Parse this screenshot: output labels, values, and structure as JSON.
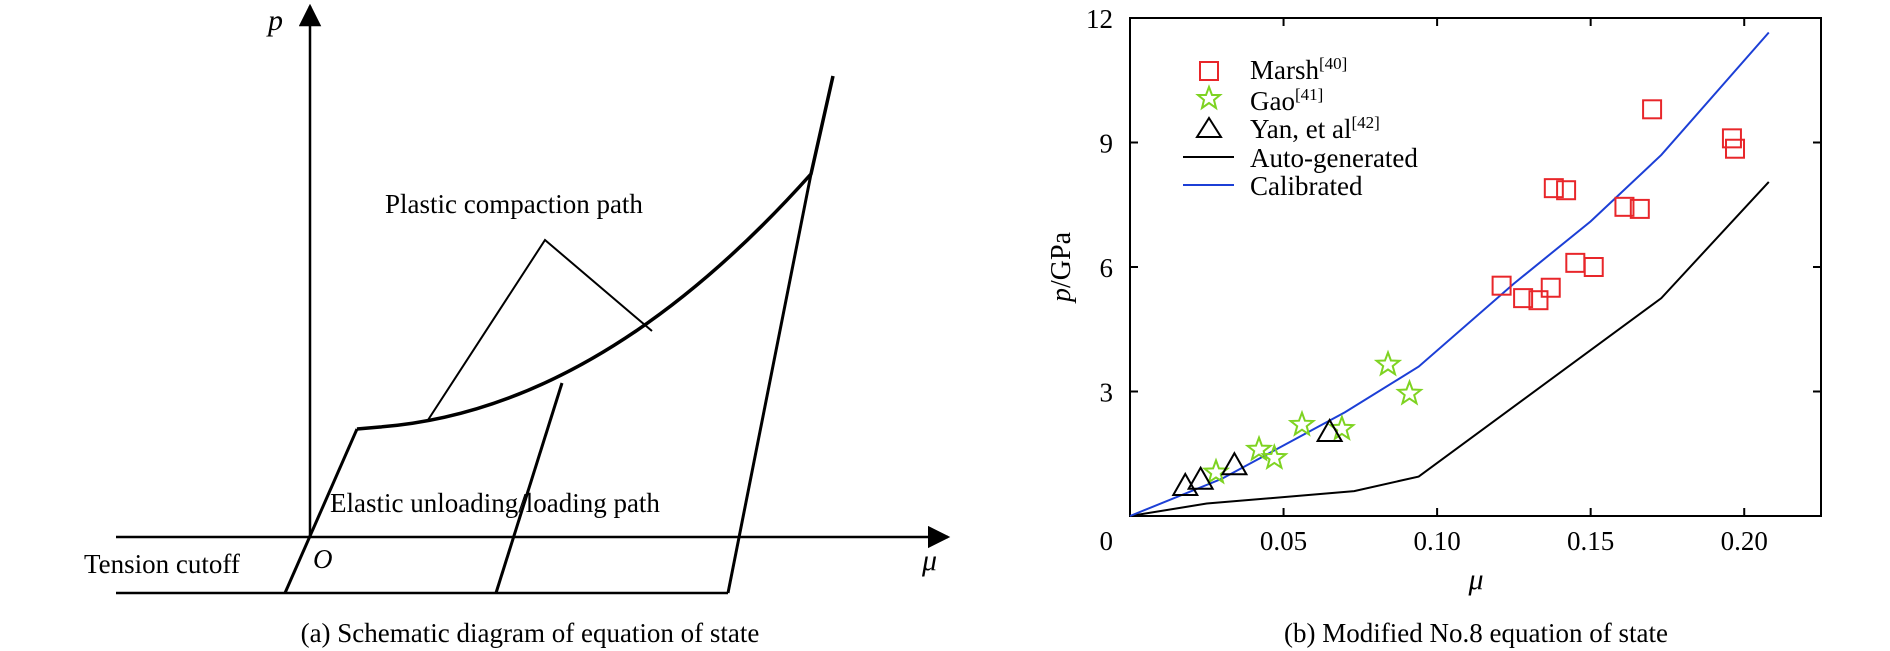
{
  "panel_a": {
    "ylabel": "p",
    "xlabel": "μ",
    "origin_label": "O",
    "annotations": {
      "plastic_path": "Plastic compaction path",
      "elastic_path": "Elastic unloading/loading path",
      "tension_cutoff": "Tension cutoff"
    },
    "caption": "(a) Schematic diagram of equation of state"
  },
  "panel_b": {
    "caption": "(b) Modified No.8 equation of state"
  },
  "chart_data": {
    "type": "scatter",
    "xlabel": "μ",
    "ylabel_italic": "p",
    "ylabel_unit": "/GPa",
    "xlim": [
      0,
      0.225
    ],
    "ylim": [
      0,
      12
    ],
    "xticks": [
      0,
      0.05,
      0.1,
      0.15,
      0.2
    ],
    "xtick_labels": [
      "0.05",
      "0.10",
      "0.15",
      "0.20"
    ],
    "yticks": [
      0,
      3,
      6,
      9,
      12
    ],
    "ytick_labels": [
      "0",
      "3",
      "6",
      "9",
      "12"
    ],
    "grid": false,
    "legend_position": "top-left",
    "series": [
      {
        "name": "Marsh",
        "ref": "[40]",
        "marker": "square",
        "color": "#e8262a",
        "points": [
          [
            0.121,
            5.55
          ],
          [
            0.128,
            5.25
          ],
          [
            0.133,
            5.2
          ],
          [
            0.137,
            5.5
          ],
          [
            0.138,
            7.9
          ],
          [
            0.142,
            7.85
          ],
          [
            0.145,
            6.1
          ],
          [
            0.151,
            6.0
          ],
          [
            0.161,
            7.45
          ],
          [
            0.166,
            7.4
          ],
          [
            0.17,
            9.8
          ],
          [
            0.196,
            9.1
          ],
          [
            0.197,
            8.85
          ]
        ]
      },
      {
        "name": "Gao",
        "ref": "[41]",
        "marker": "star",
        "color": "#7ed321",
        "points": [
          [
            0.028,
            1.05
          ],
          [
            0.042,
            1.6
          ],
          [
            0.047,
            1.4
          ],
          [
            0.056,
            2.2
          ],
          [
            0.069,
            2.1
          ],
          [
            0.084,
            3.65
          ],
          [
            0.091,
            2.95
          ]
        ]
      },
      {
        "name": "Yan, et al",
        "ref": "[42]",
        "marker": "triangle",
        "color": "#000000",
        "points": [
          [
            0.018,
            0.7
          ],
          [
            0.023,
            0.85
          ],
          [
            0.034,
            1.2
          ],
          [
            0.065,
            2.0
          ]
        ]
      },
      {
        "name": "Auto-generated",
        "marker": "line",
        "color": "#000000",
        "points": [
          [
            0,
            0
          ],
          [
            0.025,
            0.3
          ],
          [
            0.073,
            0.6
          ],
          [
            0.094,
            0.95
          ],
          [
            0.173,
            5.25
          ],
          [
            0.208,
            8.05
          ]
        ]
      },
      {
        "name": "Calibrated",
        "marker": "line",
        "color": "#1c3fd6",
        "points": [
          [
            0,
            0
          ],
          [
            0.03,
            0.9
          ],
          [
            0.07,
            2.5
          ],
          [
            0.094,
            3.6
          ],
          [
            0.125,
            5.6
          ],
          [
            0.15,
            7.1
          ],
          [
            0.173,
            8.7
          ],
          [
            0.208,
            11.65
          ]
        ]
      }
    ]
  }
}
